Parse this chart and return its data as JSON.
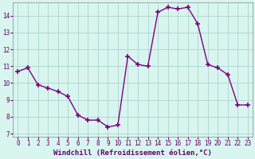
{
  "x": [
    0,
    1,
    2,
    3,
    4,
    5,
    6,
    7,
    8,
    9,
    10,
    11,
    12,
    13,
    14,
    15,
    16,
    17,
    18,
    19,
    20,
    21,
    22,
    23
  ],
  "y": [
    10.7,
    10.9,
    9.9,
    9.7,
    9.5,
    9.2,
    8.1,
    7.8,
    7.8,
    7.4,
    7.5,
    11.6,
    11.1,
    11.0,
    14.2,
    14.5,
    14.4,
    14.5,
    13.5,
    11.1,
    10.9,
    10.5,
    8.7,
    8.7
  ],
  "line_color": "#800080",
  "marker": "+",
  "marker_size": 4,
  "marker_lw": 1.2,
  "bg_color": "#d8f5f0",
  "grid_color": "#aed4cc",
  "xlabel": "Windchill (Refroidissement éolien,°C)",
  "ylim": [
    6.8,
    14.8
  ],
  "xlim": [
    -0.5,
    23.5
  ],
  "yticks": [
    7,
    8,
    9,
    10,
    11,
    12,
    13,
    14
  ],
  "xticks": [
    0,
    1,
    2,
    3,
    4,
    5,
    6,
    7,
    8,
    9,
    10,
    11,
    12,
    13,
    14,
    15,
    16,
    17,
    18,
    19,
    20,
    21,
    22,
    23
  ],
  "tick_fontsize": 5.5,
  "xlabel_fontsize": 6.5,
  "line_width": 1.0
}
